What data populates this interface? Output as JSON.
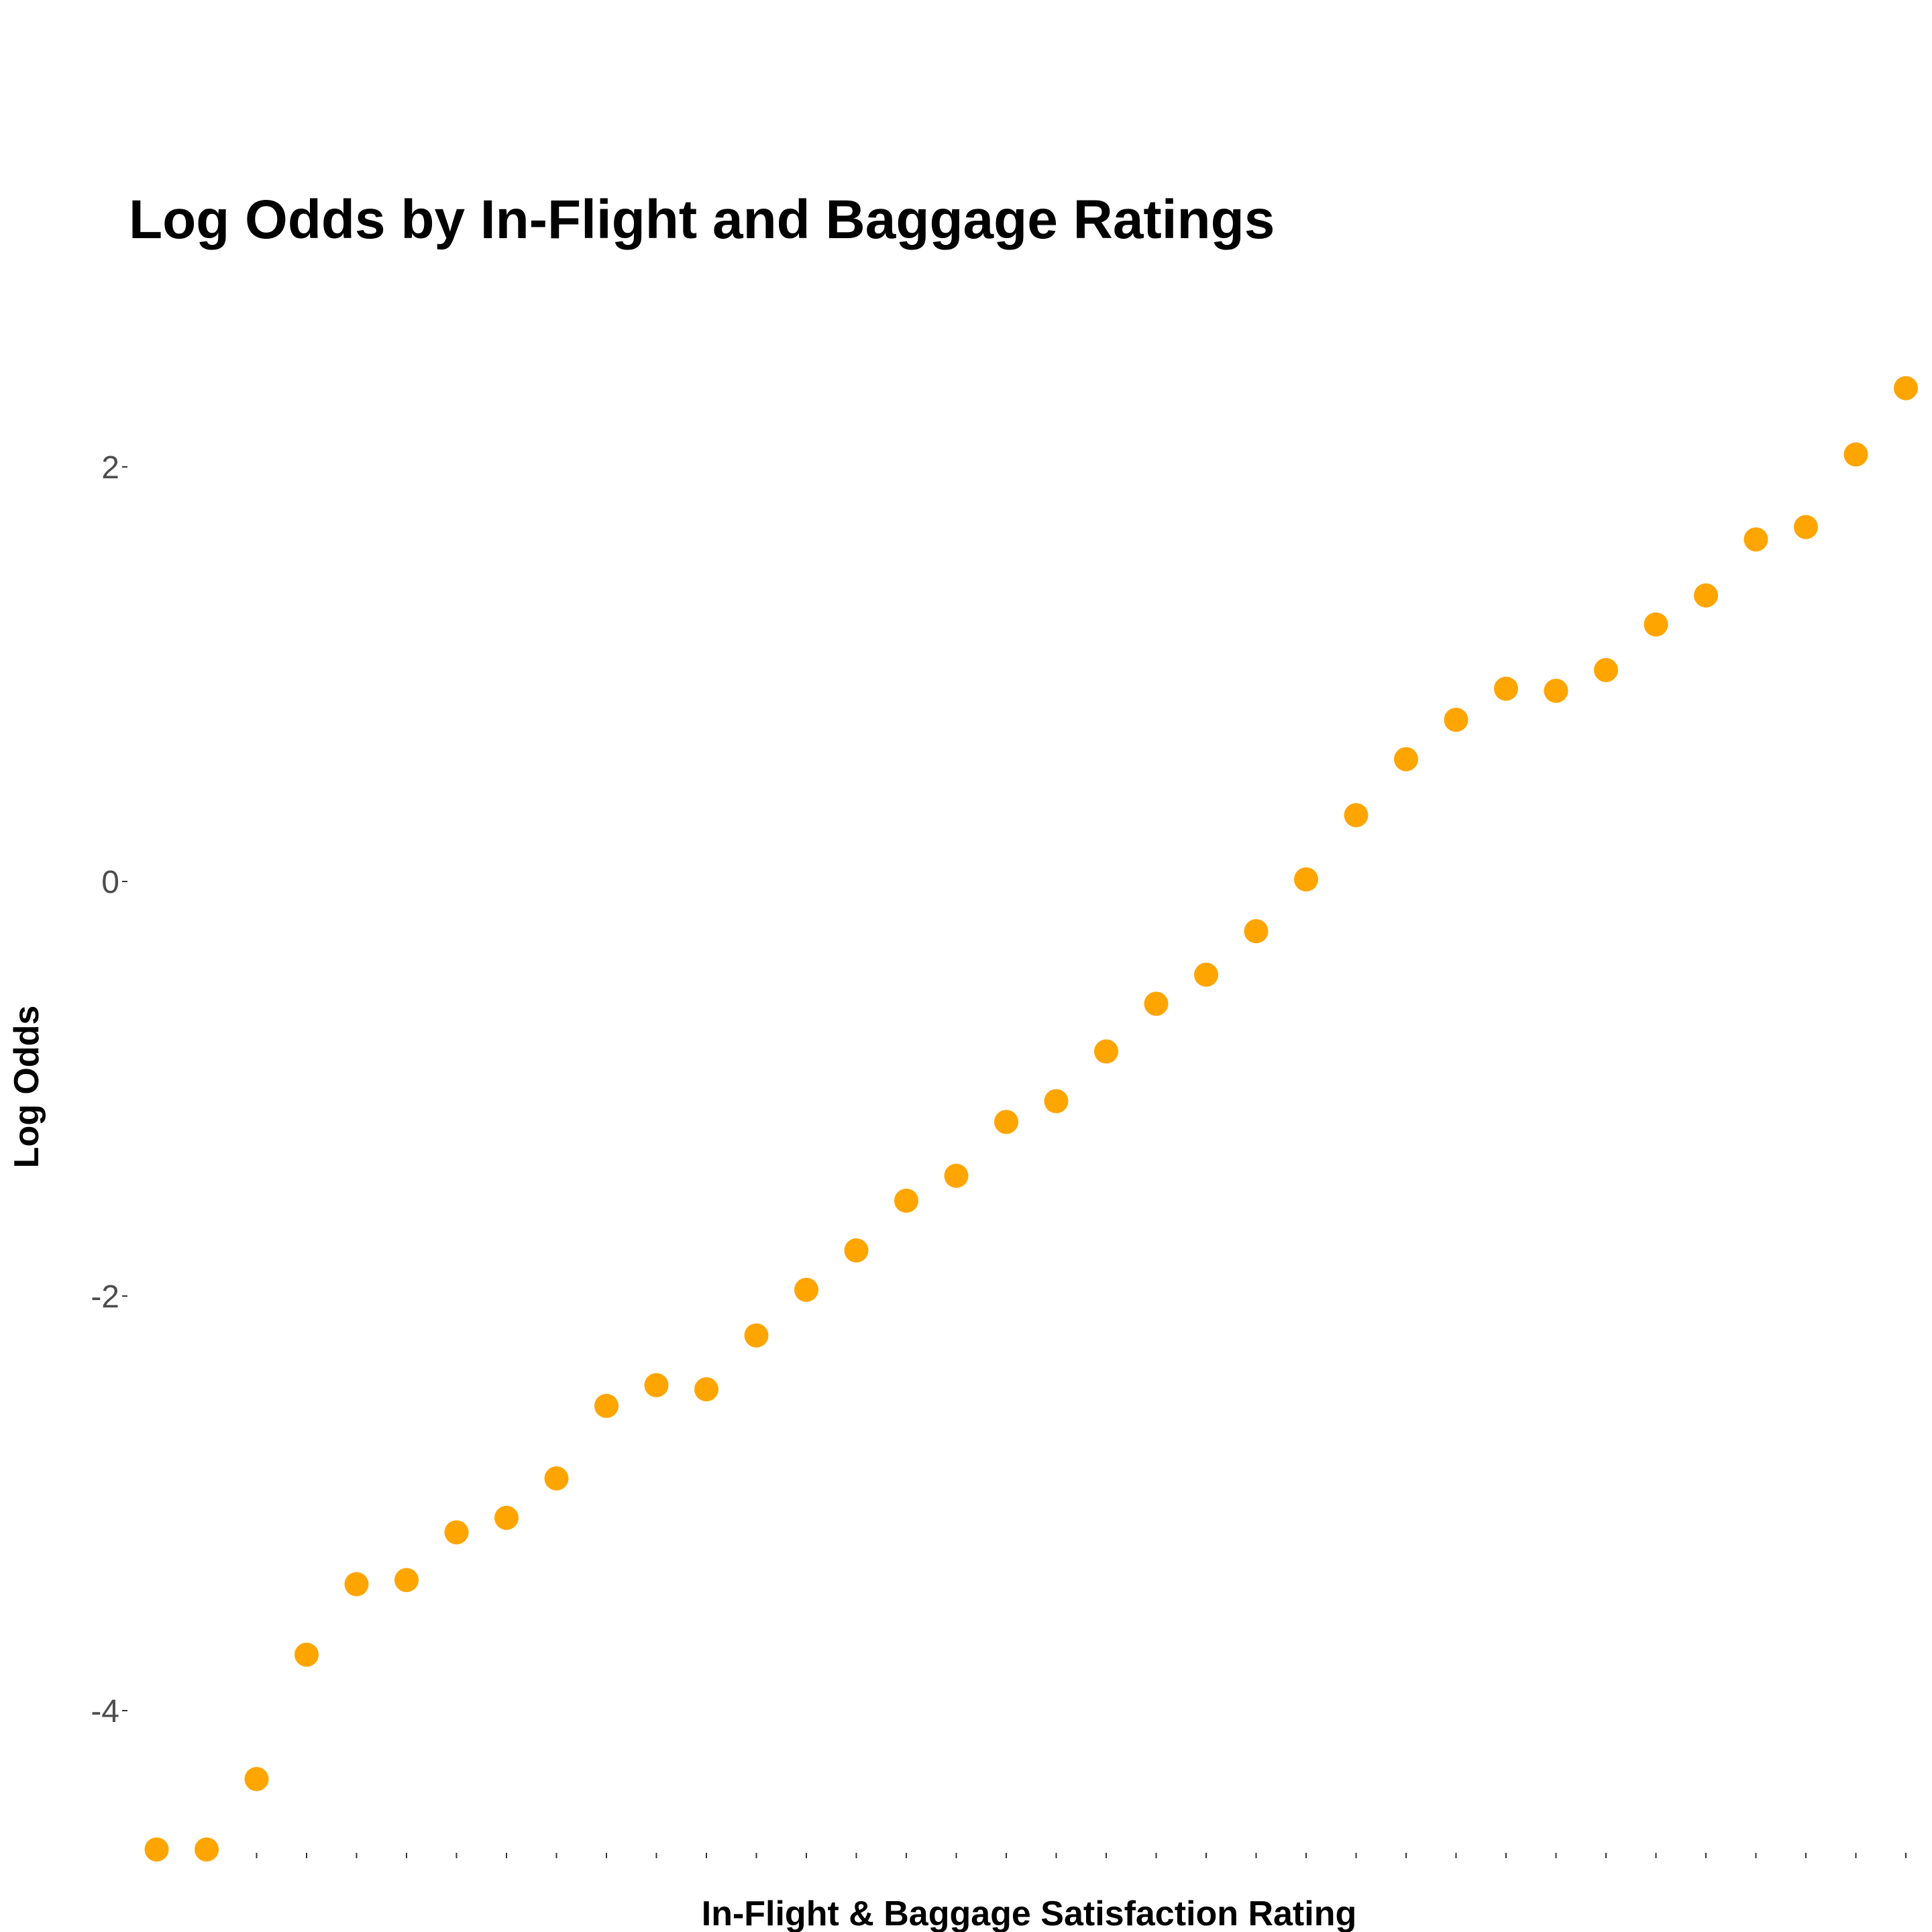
{
  "chart_data": {
    "type": "scatter",
    "title": "Log Odds by In-Flight and Baggage Ratings",
    "xlabel": "In-Flight & Baggage Satisfaction Rating",
    "ylabel": "Log Odds",
    "x_tick_labels_shown": false,
    "xlim": [
      0.5,
      36.5
    ],
    "ylim": [
      -4.7,
      2.5
    ],
    "yticks": [
      2,
      0,
      -2,
      -4
    ],
    "grid": false,
    "legend": "none",
    "point_color": "#FFA500",
    "x": [
      1,
      2,
      3,
      4,
      5,
      6,
      7,
      8,
      9,
      10,
      11,
      12,
      13,
      14,
      15,
      16,
      17,
      18,
      19,
      20,
      21,
      22,
      23,
      24,
      25,
      26,
      27,
      28,
      29,
      30,
      31,
      32,
      33,
      34,
      35,
      36
    ],
    "y": [
      -4.67,
      -4.67,
      -4.33,
      -3.73,
      -3.39,
      -3.37,
      -3.14,
      -3.07,
      -2.88,
      -2.53,
      -2.43,
      -2.45,
      -2.19,
      -1.97,
      -1.78,
      -1.54,
      -1.42,
      -1.16,
      -1.06,
      -0.82,
      -0.59,
      -0.45,
      -0.24,
      0.01,
      0.32,
      0.59,
      0.78,
      0.93,
      0.92,
      1.02,
      1.24,
      1.38,
      1.65,
      1.71,
      2.06,
      2.38
    ]
  }
}
